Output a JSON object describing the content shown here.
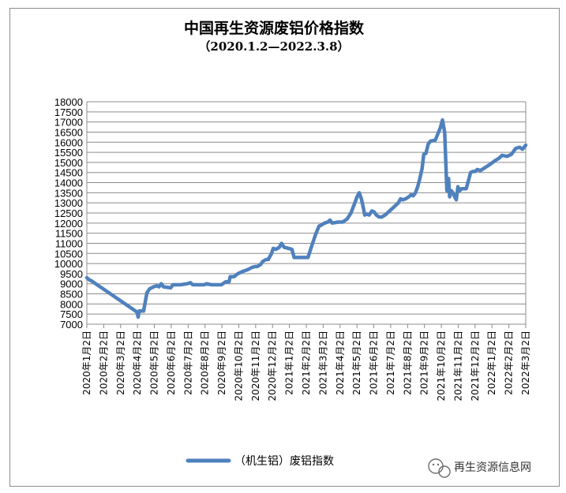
{
  "chart_data": {
    "type": "line",
    "title": "中国再生资源废铝价格指数",
    "subtitle": "（2020.1.2—2022.3.8）",
    "ylim": [
      7000,
      18000
    ],
    "yticks": [
      7000,
      7500,
      8000,
      8500,
      9000,
      9500,
      10000,
      10500,
      11000,
      11500,
      12000,
      12500,
      13000,
      13500,
      14000,
      14500,
      15000,
      15500,
      16000,
      16500,
      17000,
      17500,
      18000
    ],
    "xlim": [
      "2020-01-02",
      "2022-03-08"
    ],
    "categories": [
      "2020年1月2日",
      "2020年2月2日",
      "2020年3月2日",
      "2020年4月2日",
      "2020年5月2日",
      "2020年6月2日",
      "2020年7月2日",
      "2020年8月2日",
      "2020年9月2日",
      "2020年10月2日",
      "2020年11月2日",
      "2020年12月2日",
      "2021年1月2日",
      "2021年2月2日",
      "2021年3月2日",
      "2021年4月2日",
      "2021年5月2日",
      "2021年6月2日",
      "2021年7月2日",
      "2021年8月2日",
      "2021年9月2日",
      "2021年10月2日",
      "2021年11月2日",
      "2021年12月2日",
      "2022年1月2日",
      "2022年2月2日",
      "2022年3月2日"
    ],
    "grid": true,
    "legend_position": "bottom",
    "series": [
      {
        "name": "（机生铝）废铝指数",
        "color": "#4f81bd",
        "points": [
          [
            "2020-01-02",
            9300
          ],
          [
            "2020-01-06",
            9200
          ],
          [
            "2020-01-10",
            9150
          ],
          [
            "2020-04-02",
            7600
          ],
          [
            "2020-04-04",
            7350
          ],
          [
            "2020-04-06",
            7650
          ],
          [
            "2020-04-14",
            7650
          ],
          [
            "2020-04-20",
            8550
          ],
          [
            "2020-04-25",
            8750
          ],
          [
            "2020-05-02",
            8850
          ],
          [
            "2020-05-08",
            8900
          ],
          [
            "2020-05-12",
            8850
          ],
          [
            "2020-05-16",
            9000
          ],
          [
            "2020-05-20",
            8850
          ],
          [
            "2020-06-02",
            8800
          ],
          [
            "2020-06-06",
            8950
          ],
          [
            "2020-06-20",
            8950
          ],
          [
            "2020-07-02",
            9000
          ],
          [
            "2020-07-08",
            9050
          ],
          [
            "2020-07-12",
            8950
          ],
          [
            "2020-07-20",
            8950
          ],
          [
            "2020-08-02",
            8950
          ],
          [
            "2020-08-06",
            9000
          ],
          [
            "2020-08-15",
            8950
          ],
          [
            "2020-09-02",
            8950
          ],
          [
            "2020-09-10",
            9100
          ],
          [
            "2020-09-16",
            9100
          ],
          [
            "2020-09-18",
            9350
          ],
          [
            "2020-09-25",
            9350
          ],
          [
            "2020-10-02",
            9500
          ],
          [
            "2020-10-10",
            9600
          ],
          [
            "2020-10-20",
            9700
          ],
          [
            "2020-10-27",
            9800
          ],
          [
            "2020-11-02",
            9850
          ],
          [
            "2020-11-06",
            9850
          ],
          [
            "2020-11-12",
            9950
          ],
          [
            "2020-11-16",
            10100
          ],
          [
            "2020-11-22",
            10200
          ],
          [
            "2020-11-26",
            10200
          ],
          [
            "2020-12-02",
            10500
          ],
          [
            "2020-12-05",
            10750
          ],
          [
            "2020-12-10",
            10700
          ],
          [
            "2020-12-16",
            10800
          ],
          [
            "2020-12-20",
            11000
          ],
          [
            "2020-12-25",
            10800
          ],
          [
            "2021-01-02",
            10750
          ],
          [
            "2021-01-08",
            10700
          ],
          [
            "2021-01-12",
            10300
          ],
          [
            "2021-01-20",
            10300
          ],
          [
            "2021-02-02",
            10300
          ],
          [
            "2021-02-06",
            10300
          ],
          [
            "2021-02-12",
            10800
          ],
          [
            "2021-02-20",
            11450
          ],
          [
            "2021-02-26",
            11850
          ],
          [
            "2021-03-02",
            11900
          ],
          [
            "2021-03-08",
            12000
          ],
          [
            "2021-03-14",
            12050
          ],
          [
            "2021-03-18",
            12150
          ],
          [
            "2021-03-22",
            12000
          ],
          [
            "2021-04-02",
            12050
          ],
          [
            "2021-04-10",
            12050
          ],
          [
            "2021-04-18",
            12200
          ],
          [
            "2021-04-25",
            12500
          ],
          [
            "2021-05-02",
            13000
          ],
          [
            "2021-05-06",
            13300
          ],
          [
            "2021-05-10",
            13500
          ],
          [
            "2021-05-14",
            13200
          ],
          [
            "2021-05-18",
            12700
          ],
          [
            "2021-05-20",
            12400
          ],
          [
            "2021-05-24",
            12450
          ],
          [
            "2021-05-28",
            12400
          ],
          [
            "2021-06-02",
            12600
          ],
          [
            "2021-06-06",
            12550
          ],
          [
            "2021-06-10",
            12400
          ],
          [
            "2021-06-15",
            12300
          ],
          [
            "2021-06-20",
            12300
          ],
          [
            "2021-06-26",
            12400
          ],
          [
            "2021-07-02",
            12550
          ],
          [
            "2021-07-08",
            12700
          ],
          [
            "2021-07-14",
            12850
          ],
          [
            "2021-07-20",
            13000
          ],
          [
            "2021-07-24",
            13200
          ],
          [
            "2021-07-28",
            13150
          ],
          [
            "2021-08-02",
            13200
          ],
          [
            "2021-08-08",
            13300
          ],
          [
            "2021-08-12",
            13400
          ],
          [
            "2021-08-16",
            13350
          ],
          [
            "2021-08-20",
            13500
          ],
          [
            "2021-08-24",
            13800
          ],
          [
            "2021-08-27",
            14100
          ],
          [
            "2021-09-01",
            14700
          ],
          [
            "2021-09-04",
            15400
          ],
          [
            "2021-09-08",
            15450
          ],
          [
            "2021-09-12",
            15900
          ],
          [
            "2021-09-16",
            16050
          ],
          [
            "2021-09-25",
            16100
          ],
          [
            "2021-10-04",
            16700
          ],
          [
            "2021-10-08",
            17100
          ],
          [
            "2021-10-12",
            16500
          ],
          [
            "2021-10-16",
            13600
          ],
          [
            "2021-10-19",
            14200
          ],
          [
            "2021-10-21",
            13300
          ],
          [
            "2021-10-24",
            13600
          ],
          [
            "2021-10-27",
            13500
          ],
          [
            "2021-10-30",
            13300
          ],
          [
            "2021-11-02",
            13150
          ],
          [
            "2021-11-05",
            13800
          ],
          [
            "2021-11-08",
            13600
          ],
          [
            "2021-11-12",
            13700
          ],
          [
            "2021-11-20",
            13700
          ],
          [
            "2021-11-28",
            14500
          ],
          [
            "2021-12-02",
            14550
          ],
          [
            "2021-12-06",
            14550
          ],
          [
            "2021-12-10",
            14650
          ],
          [
            "2021-12-16",
            14600
          ],
          [
            "2022-01-02",
            14900
          ],
          [
            "2022-01-12",
            15100
          ],
          [
            "2022-01-18",
            15200
          ],
          [
            "2022-01-24",
            15350
          ],
          [
            "2022-02-02",
            15300
          ],
          [
            "2022-02-10",
            15400
          ],
          [
            "2022-02-18",
            15700
          ],
          [
            "2022-02-25",
            15750
          ],
          [
            "2022-03-02",
            15650
          ],
          [
            "2022-03-08",
            15850
          ]
        ]
      }
    ]
  },
  "watermark": {
    "text": "再生资源信息网",
    "icon": "wechat-icon"
  }
}
